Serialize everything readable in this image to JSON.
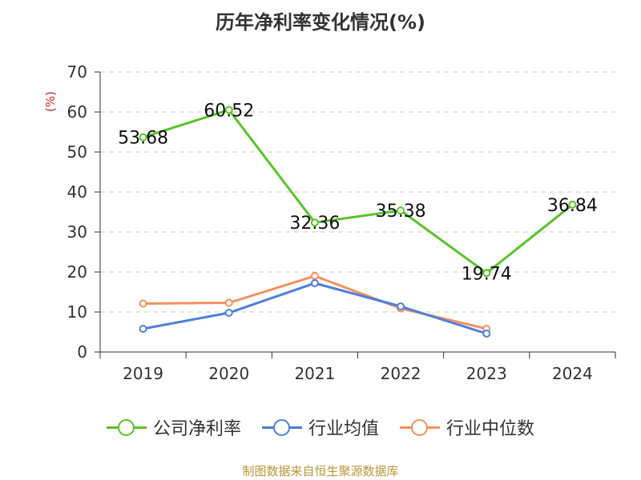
{
  "chart_data": {
    "type": "line",
    "title": "历年净利率变化情况(%)",
    "ylabel": "(%)",
    "categories": [
      "2019",
      "2020",
      "2021",
      "2022",
      "2023",
      "2024"
    ],
    "ylim": [
      0,
      70
    ],
    "yticks": [
      0,
      10,
      20,
      30,
      40,
      50,
      60,
      70
    ],
    "grid": true,
    "legend_position": "bottom",
    "series": [
      {
        "name": "公司净利率",
        "color": "#5ac429",
        "values": [
          53.68,
          60.52,
          32.36,
          35.38,
          19.74,
          36.84
        ],
        "labels": [
          "53.68",
          "60.52",
          "32.36",
          "35.38",
          "19.74",
          "36.84"
        ]
      },
      {
        "name": "行业均值",
        "color": "#4f7fd9",
        "values": [
          5.8,
          9.8,
          17.2,
          11.4,
          4.6,
          null
        ]
      },
      {
        "name": "行业中位数",
        "color": "#f5915c",
        "values": [
          12.1,
          12.3,
          19.0,
          10.9,
          5.8,
          null
        ]
      }
    ]
  },
  "source": "制图数据来自恒生聚源数据库"
}
